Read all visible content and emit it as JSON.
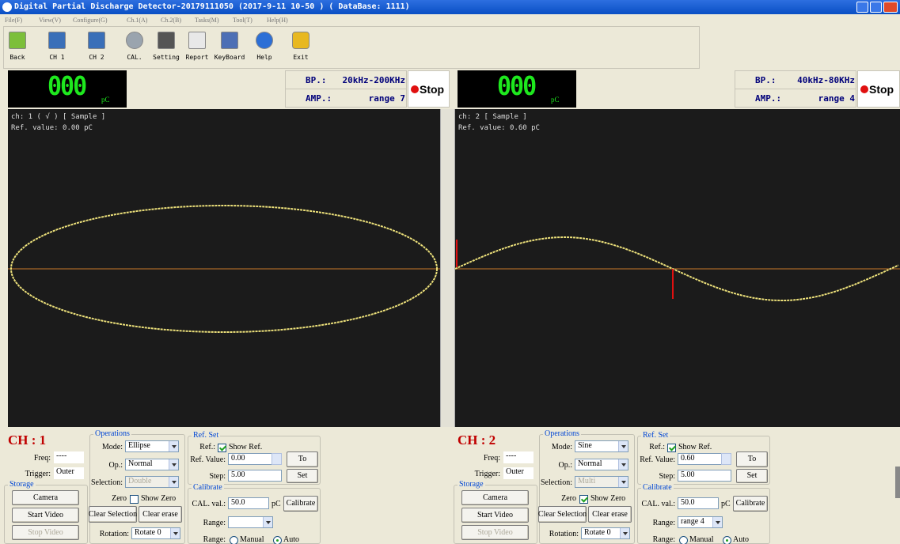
{
  "window": {
    "title": "Digital Partial Discharge Detector-20179111050 (2017-9-11 10-50 ) ( DataBase: 1111)"
  },
  "menu": [
    "File(F)",
    "View(V)",
    "Configure(G)",
    "Ch.1(A)",
    "Ch.2(B)",
    "Tasks(M)",
    "Tool(T)",
    "Help(H)"
  ],
  "toolbar": [
    "Back",
    "CH 1",
    "CH 2",
    "CAL.",
    "Setting",
    "Report",
    "KeyBoard",
    "Help",
    "Exit"
  ],
  "channels": [
    {
      "display": "000",
      "unit": "pC",
      "bp_label": "BP.:",
      "bp": "20kHz-200KHz",
      "amp_label": "AMP.:",
      "amp": "range 7",
      "stop": "Stop",
      "status": "ch: 1 ( √ ) [ Sample ]",
      "ref_info": "Ref. value: 0.00 pC",
      "name": "CH : 1",
      "freq_label": "Freq:",
      "freq": "----",
      "trigger_label": "Trigger:",
      "trigger": "Outer",
      "storage": {
        "legend": "Storage",
        "buttons": [
          "Camera",
          "Start Video",
          "Stop Video"
        ],
        "enabled": [
          true,
          true,
          false
        ]
      },
      "operations": {
        "legend": "Operations",
        "mode_label": "Mode:",
        "mode": "Ellipse",
        "op_label": "Op.:",
        "op": "Normal",
        "selection_label": "Selection:",
        "selection": "Double",
        "selection_enabled": false,
        "zero_label": "Zero",
        "show_zero": "Show Zero",
        "zero_checked": false,
        "clear_selection": "Clear Selection",
        "clear_erase": "Clear erase",
        "rotation_label": "Rotation:",
        "rotation": "Rotate 0"
      },
      "ref_set": {
        "legend": "Ref. Set",
        "ref_label": "Ref.:",
        "show_ref": "Show Ref.",
        "ref_checked": true,
        "value_label": "Ref. Value:",
        "value": "0.00",
        "step_label": "Step:",
        "step": "5.00",
        "to": "To",
        "set": "Set"
      },
      "calibrate": {
        "legend": "Calibrate",
        "cal_label": "CAL. val.:",
        "cal": "50.0",
        "unit": "pC",
        "button": "Calibrate",
        "range_label": "Range:",
        "mode_label": "Range:",
        "manual": "Manual",
        "auto": "Auto",
        "auto_selected": true
      }
    },
    {
      "display": "000",
      "unit": "pC",
      "bp_label": "BP.:",
      "bp": "40kHz-80KHz",
      "amp_label": "AMP.:",
      "amp": "range 4",
      "stop": "Stop",
      "status": "ch: 2 [ Sample ]",
      "ref_info": "Ref. value: 0.60 pC",
      "name": "CH : 2",
      "freq_label": "Freq:",
      "freq": "----",
      "trigger_label": "Trigger:",
      "trigger": "Outer",
      "storage": {
        "legend": "Storage",
        "buttons": [
          "Camera",
          "Start Video",
          "Stop Video"
        ],
        "enabled": [
          true,
          true,
          false
        ]
      },
      "operations": {
        "legend": "Operations",
        "mode_label": "Mode:",
        "mode": "Sine",
        "op_label": "Op.:",
        "op": "Normal",
        "selection_label": "Selection:",
        "selection": "Multi",
        "selection_enabled": false,
        "zero_label": "Zero",
        "show_zero": "Show Zero",
        "zero_checked": true,
        "clear_selection": "Clear Selection",
        "clear_erase": "Clear erase",
        "rotation_label": "Rotation:",
        "rotation": "Rotate 0"
      },
      "ref_set": {
        "legend": "Ref. Set",
        "ref_label": "Ref.:",
        "show_ref": "Show Ref.",
        "ref_checked": true,
        "value_label": "Ref. Value:",
        "value": "0.60",
        "step_label": "Step:",
        "step": "5.00",
        "to": "To",
        "set": "Set"
      },
      "calibrate": {
        "legend": "Calibrate",
        "cal_label": "CAL. val.:",
        "cal": "50.0",
        "unit": "pC",
        "button": "Calibrate",
        "range_label": "Range:",
        "range": "range 4",
        "mode_label": "Range:",
        "manual": "Manual",
        "auto": "Auto",
        "auto_selected": true
      }
    }
  ]
}
